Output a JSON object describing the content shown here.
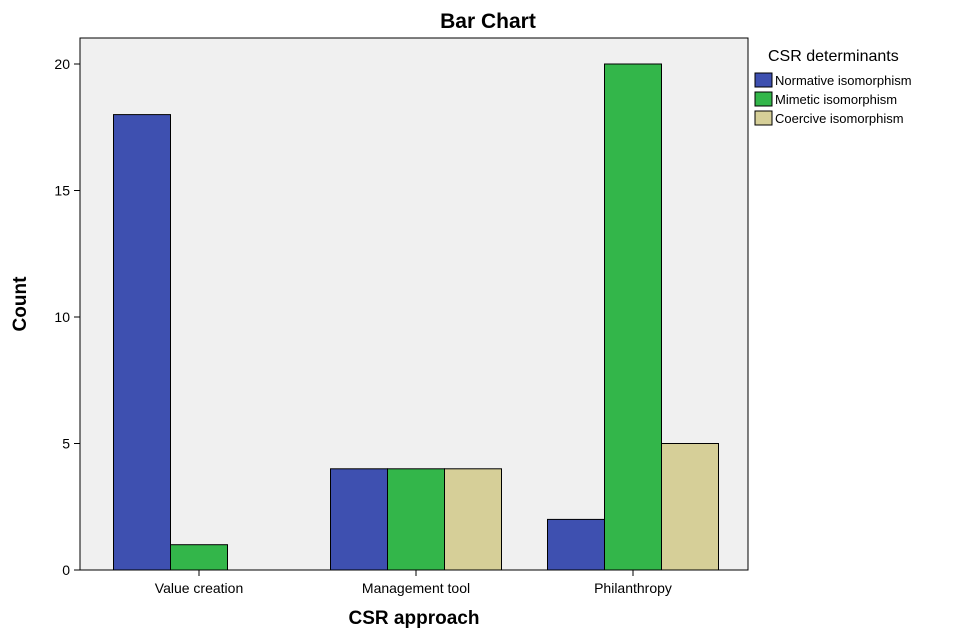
{
  "chart_data": {
    "type": "bar",
    "title": "Bar Chart",
    "xlabel": "CSR approach",
    "ylabel": "Count",
    "categories": [
      "Value creation",
      "Management tool",
      "Philanthropy"
    ],
    "ylim": [
      0,
      21
    ],
    "yticks": [
      "0",
      "5",
      "10",
      "15",
      "20"
    ],
    "grid": false,
    "legend": {
      "title": "CSR determinants",
      "placement": "right"
    },
    "series": [
      {
        "name": "Normative isomorphism",
        "color": "#3e50b0",
        "values": [
          18,
          4,
          2
        ]
      },
      {
        "name": "Mimetic isomorphism",
        "color": "#33b64a",
        "values": [
          1,
          4,
          20
        ]
      },
      {
        "name": "Coercive isomorphism",
        "color": "#d6cf98",
        "values": [
          0,
          4,
          5
        ]
      }
    ]
  }
}
